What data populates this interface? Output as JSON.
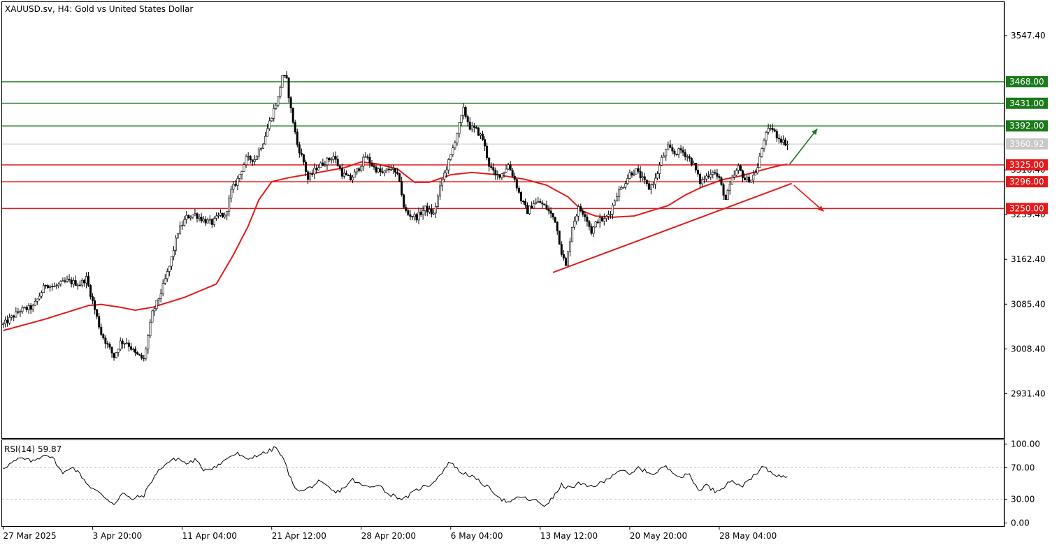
{
  "chart_data": {
    "type": "candlestick",
    "title": "XAUUSD.sv, H4:  Gold vs United States Dollar",
    "y_ticks": [
      2931.4,
      3008.4,
      3085.4,
      3162.4,
      3239.4,
      3316.4,
      3547.4
    ],
    "y_tick_labels": [
      "2931.40",
      "3008.40",
      "3085.40",
      "3162.40",
      "3239.40",
      "3316.40",
      "3547.40"
    ],
    "ylim": [
      2855,
      3605
    ],
    "x_labels": [
      "27 Mar 2025",
      "3 Apr 20:00",
      "11 Apr 04:00",
      "21 Apr 12:00",
      "28 Apr 20:00",
      "6 May 04:00",
      "13 May 12:00",
      "20 May 20:00",
      "28 May 04:00"
    ],
    "x_label_slots": [
      0,
      42,
      84,
      126,
      168,
      210,
      252,
      294,
      336
    ],
    "slot_count": 470,
    "current_price": {
      "value": 3360.92,
      "label": "3360.92",
      "color": "#c8c8c8"
    },
    "resistance_levels": [
      {
        "value": 3468.0,
        "label": "3468.00",
        "color": "#1a7a1a"
      },
      {
        "value": 3431.0,
        "label": "3431.00",
        "color": "#1a7a1a"
      },
      {
        "value": 3392.0,
        "label": "3392.00",
        "color": "#1a7a1a"
      }
    ],
    "support_levels": [
      {
        "value": 3325.0,
        "label": "3325.00",
        "color": "#e31a1a"
      },
      {
        "value": 3296.0,
        "label": "3296.00",
        "color": "#e31a1a"
      },
      {
        "value": 3250.0,
        "label": "3250.00",
        "color": "#e31a1a"
      }
    ],
    "anchors": [
      [
        0,
        3050
      ],
      [
        8,
        3075
      ],
      [
        14,
        3080
      ],
      [
        20,
        3120
      ],
      [
        24,
        3115
      ],
      [
        30,
        3125
      ],
      [
        36,
        3120
      ],
      [
        39,
        3130
      ],
      [
        42,
        3090
      ],
      [
        46,
        3035
      ],
      [
        52,
        2995
      ],
      [
        55,
        3020
      ],
      [
        58,
        3020
      ],
      [
        62,
        3000
      ],
      [
        66,
        2990
      ],
      [
        70,
        3070
      ],
      [
        74,
        3105
      ],
      [
        78,
        3150
      ],
      [
        82,
        3210
      ],
      [
        86,
        3235
      ],
      [
        90,
        3240
      ],
      [
        94,
        3230
      ],
      [
        98,
        3225
      ],
      [
        102,
        3240
      ],
      [
        104,
        3235
      ],
      [
        107,
        3280
      ],
      [
        110,
        3300
      ],
      [
        114,
        3335
      ],
      [
        118,
        3335
      ],
      [
        122,
        3365
      ],
      [
        126,
        3410
      ],
      [
        129,
        3440
      ],
      [
        131,
        3480
      ],
      [
        133,
        3470
      ],
      [
        135,
        3420
      ],
      [
        138,
        3360
      ],
      [
        141,
        3330
      ],
      [
        143,
        3300
      ],
      [
        147,
        3320
      ],
      [
        151,
        3330
      ],
      [
        155,
        3340
      ],
      [
        159,
        3310
      ],
      [
        163,
        3300
      ],
      [
        167,
        3320
      ],
      [
        170,
        3340
      ],
      [
        174,
        3320
      ],
      [
        178,
        3310
      ],
      [
        182,
        3320
      ],
      [
        186,
        3300
      ],
      [
        188,
        3250
      ],
      [
        190,
        3240
      ],
      [
        194,
        3235
      ],
      [
        198,
        3250
      ],
      [
        202,
        3240
      ],
      [
        206,
        3300
      ],
      [
        210,
        3340
      ],
      [
        213,
        3380
      ],
      [
        216,
        3420
      ],
      [
        219,
        3390
      ],
      [
        222,
        3385
      ],
      [
        225,
        3370
      ],
      [
        228,
        3325
      ],
      [
        231,
        3305
      ],
      [
        234,
        3310
      ],
      [
        237,
        3325
      ],
      [
        240,
        3300
      ],
      [
        243,
        3265
      ],
      [
        246,
        3245
      ],
      [
        249,
        3260
      ],
      [
        252,
        3260
      ],
      [
        255,
        3250
      ],
      [
        259,
        3230
      ],
      [
        262,
        3175
      ],
      [
        264,
        3150
      ],
      [
        267,
        3220
      ],
      [
        270,
        3250
      ],
      [
        273,
        3240
      ],
      [
        276,
        3210
      ],
      [
        279,
        3230
      ],
      [
        282,
        3230
      ],
      [
        285,
        3245
      ],
      [
        288,
        3275
      ],
      [
        291,
        3290
      ],
      [
        294,
        3310
      ],
      [
        297,
        3315
      ],
      [
        300,
        3300
      ],
      [
        303,
        3285
      ],
      [
        306,
        3300
      ],
      [
        309,
        3335
      ],
      [
        312,
        3355
      ],
      [
        315,
        3345
      ],
      [
        318,
        3350
      ],
      [
        321,
        3340
      ],
      [
        324,
        3325
      ],
      [
        327,
        3295
      ],
      [
        330,
        3305
      ],
      [
        333,
        3315
      ],
      [
        336,
        3300
      ],
      [
        339,
        3265
      ],
      [
        342,
        3300
      ],
      [
        345,
        3320
      ],
      [
        348,
        3300
      ],
      [
        351,
        3300
      ],
      [
        354,
        3320
      ],
      [
        357,
        3370
      ],
      [
        360,
        3390
      ],
      [
        363,
        3375
      ],
      [
        366,
        3365
      ],
      [
        368,
        3361
      ]
    ],
    "ma_anchors": [
      [
        0,
        3040
      ],
      [
        20,
        3060
      ],
      [
        40,
        3083
      ],
      [
        46,
        3085
      ],
      [
        55,
        3080
      ],
      [
        62,
        3075
      ],
      [
        70,
        3080
      ],
      [
        85,
        3097
      ],
      [
        100,
        3120
      ],
      [
        108,
        3170
      ],
      [
        115,
        3220
      ],
      [
        120,
        3265
      ],
      [
        126,
        3296
      ],
      [
        134,
        3303
      ],
      [
        145,
        3310
      ],
      [
        160,
        3320
      ],
      [
        168,
        3330
      ],
      [
        175,
        3327
      ],
      [
        185,
        3318
      ],
      [
        193,
        3295
      ],
      [
        200,
        3295
      ],
      [
        210,
        3308
      ],
      [
        220,
        3312
      ],
      [
        232,
        3308
      ],
      [
        245,
        3300
      ],
      [
        255,
        3290
      ],
      [
        265,
        3270
      ],
      [
        272,
        3245
      ],
      [
        278,
        3237
      ],
      [
        286,
        3235
      ],
      [
        296,
        3237
      ],
      [
        304,
        3246
      ],
      [
        312,
        3255
      ],
      [
        320,
        3273
      ],
      [
        328,
        3287
      ],
      [
        338,
        3300
      ],
      [
        345,
        3305
      ],
      [
        352,
        3312
      ],
      [
        360,
        3320
      ],
      [
        366,
        3325
      ],
      [
        368,
        3326
      ]
    ],
    "trendline": [
      [
        258,
        3140
      ],
      [
        370,
        3293
      ]
    ],
    "arrow_up": [
      [
        369,
        3326
      ],
      [
        382,
        3387
      ]
    ],
    "arrow_down": [
      [
        371,
        3290
      ],
      [
        385,
        3245
      ]
    ],
    "rsi": {
      "label": "RSI(14) 59.87",
      "value": 59.87,
      "ticks": [
        100.0,
        70.0,
        30.0,
        0.0
      ],
      "tick_labels": [
        "100.00",
        "70.00",
        "30.00",
        "0.00"
      ],
      "levels": [
        70,
        30
      ],
      "ylim": [
        -4,
        105
      ],
      "anchors": [
        [
          0,
          70
        ],
        [
          8,
          82
        ],
        [
          14,
          78
        ],
        [
          20,
          88
        ],
        [
          24,
          80
        ],
        [
          28,
          62
        ],
        [
          32,
          72
        ],
        [
          36,
          62
        ],
        [
          40,
          48
        ],
        [
          44,
          40
        ],
        [
          48,
          32
        ],
        [
          52,
          24
        ],
        [
          56,
          38
        ],
        [
          60,
          30
        ],
        [
          66,
          35
        ],
        [
          70,
          55
        ],
        [
          74,
          70
        ],
        [
          78,
          78
        ],
        [
          82,
          82
        ],
        [
          86,
          75
        ],
        [
          90,
          80
        ],
        [
          94,
          68
        ],
        [
          98,
          70
        ],
        [
          102,
          75
        ],
        [
          106,
          84
        ],
        [
          110,
          88
        ],
        [
          114,
          80
        ],
        [
          118,
          85
        ],
        [
          124,
          90
        ],
        [
          128,
          96
        ],
        [
          132,
          78
        ],
        [
          136,
          48
        ],
        [
          140,
          40
        ],
        [
          144,
          45
        ],
        [
          148,
          52
        ],
        [
          152,
          46
        ],
        [
          156,
          38
        ],
        [
          160,
          45
        ],
        [
          164,
          55
        ],
        [
          168,
          48
        ],
        [
          172,
          45
        ],
        [
          176,
          50
        ],
        [
          180,
          38
        ],
        [
          184,
          34
        ],
        [
          188,
          30
        ],
        [
          192,
          38
        ],
        [
          196,
          45
        ],
        [
          200,
          48
        ],
        [
          204,
          58
        ],
        [
          208,
          72
        ],
        [
          210,
          78
        ],
        [
          214,
          65
        ],
        [
          218,
          62
        ],
        [
          222,
          55
        ],
        [
          226,
          48
        ],
        [
          230,
          40
        ],
        [
          234,
          30
        ],
        [
          238,
          25
        ],
        [
          242,
          34
        ],
        [
          246,
          30
        ],
        [
          250,
          28
        ],
        [
          254,
          22
        ],
        [
          258,
          32
        ],
        [
          262,
          48
        ],
        [
          266,
          44
        ],
        [
          270,
          50
        ],
        [
          274,
          46
        ],
        [
          278,
          48
        ],
        [
          282,
          52
        ],
        [
          286,
          62
        ],
        [
          290,
          68
        ],
        [
          294,
          60
        ],
        [
          298,
          70
        ],
        [
          302,
          65
        ],
        [
          306,
          62
        ],
        [
          310,
          72
        ],
        [
          314,
          66
        ],
        [
          318,
          58
        ],
        [
          322,
          62
        ],
        [
          326,
          42
        ],
        [
          330,
          48
        ],
        [
          334,
          40
        ],
        [
          338,
          46
        ],
        [
          342,
          55
        ],
        [
          346,
          45
        ],
        [
          350,
          56
        ],
        [
          354,
          62
        ],
        [
          356,
          72
        ],
        [
          358,
          68
        ],
        [
          362,
          62
        ],
        [
          366,
          58
        ],
        [
          368,
          60
        ]
      ]
    },
    "colors": {
      "candle": "#000000",
      "ma": "#e31a1a",
      "rsi_line": "#000000",
      "grid_level": "#c8c8c8"
    }
  }
}
